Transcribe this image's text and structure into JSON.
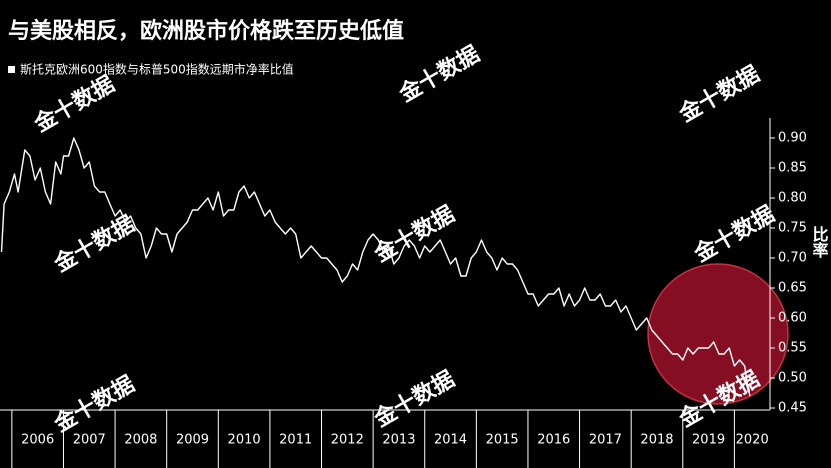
{
  "chart_data": {
    "type": "line",
    "title": "与美股相反，欧洲股市价格跌至历史低值",
    "legend_label": "斯托克欧洲600指数与标普500指数远期市净率比值",
    "ylabel": "比率",
    "watermark": "金十数据",
    "x": [
      2005.8,
      2005.85,
      2005.95,
      2006.05,
      2006.12,
      2006.25,
      2006.35,
      2006.45,
      2006.55,
      2006.65,
      2006.75,
      2006.85,
      2006.95,
      2007.0,
      2007.1,
      2007.2,
      2007.3,
      2007.4,
      2007.5,
      2007.6,
      2007.7,
      2007.8,
      2007.9,
      2008.0,
      2008.1,
      2008.2,
      2008.3,
      2008.4,
      2008.5,
      2008.6,
      2008.7,
      2008.8,
      2008.9,
      2009.0,
      2009.1,
      2009.2,
      2009.3,
      2009.4,
      2009.5,
      2009.6,
      2009.7,
      2009.8,
      2009.9,
      2010.0,
      2010.1,
      2010.2,
      2010.3,
      2010.4,
      2010.5,
      2010.6,
      2010.7,
      2010.8,
      2010.9,
      2011.0,
      2011.1,
      2011.2,
      2011.3,
      2011.4,
      2011.5,
      2011.6,
      2011.7,
      2011.8,
      2011.9,
      2012.0,
      2012.1,
      2012.2,
      2012.3,
      2012.4,
      2012.5,
      2012.6,
      2012.7,
      2012.8,
      2012.9,
      2013.0,
      2013.1,
      2013.2,
      2013.3,
      2013.4,
      2013.5,
      2013.6,
      2013.7,
      2013.8,
      2013.9,
      2014.0,
      2014.1,
      2014.2,
      2014.3,
      2014.4,
      2014.5,
      2014.6,
      2014.7,
      2014.8,
      2014.9,
      2015.0,
      2015.1,
      2015.2,
      2015.3,
      2015.4,
      2015.5,
      2015.6,
      2015.7,
      2015.8,
      2015.9,
      2016.0,
      2016.1,
      2016.2,
      2016.3,
      2016.4,
      2016.5,
      2016.6,
      2016.7,
      2016.8,
      2016.9,
      2017.0,
      2017.1,
      2017.2,
      2017.3,
      2017.4,
      2017.5,
      2017.6,
      2017.7,
      2017.8,
      2017.9,
      2018.0,
      2018.1,
      2018.2,
      2018.3,
      2018.4,
      2018.5,
      2018.6,
      2018.7,
      2018.8,
      2018.9,
      2019.0,
      2019.1,
      2019.2,
      2019.3,
      2019.4,
      2019.5,
      2019.6,
      2019.7,
      2019.8,
      2019.9,
      2020.0,
      2020.1,
      2020.2,
      2020.25,
      2020.3
    ],
    "series": [
      {
        "name": "斯托克欧洲600指数与标普500指数远期市净率比值",
        "color": "#ffffff",
        "values": [
          0.71,
          0.79,
          0.81,
          0.84,
          0.81,
          0.88,
          0.87,
          0.83,
          0.85,
          0.81,
          0.79,
          0.86,
          0.84,
          0.87,
          0.87,
          0.9,
          0.88,
          0.85,
          0.86,
          0.82,
          0.81,
          0.81,
          0.79,
          0.77,
          0.78,
          0.76,
          0.77,
          0.75,
          0.74,
          0.7,
          0.72,
          0.75,
          0.74,
          0.74,
          0.71,
          0.74,
          0.75,
          0.76,
          0.78,
          0.78,
          0.79,
          0.8,
          0.78,
          0.81,
          0.77,
          0.78,
          0.78,
          0.81,
          0.82,
          0.8,
          0.81,
          0.79,
          0.77,
          0.78,
          0.76,
          0.75,
          0.74,
          0.75,
          0.74,
          0.7,
          0.71,
          0.72,
          0.71,
          0.7,
          0.7,
          0.69,
          0.68,
          0.66,
          0.67,
          0.69,
          0.68,
          0.71,
          0.73,
          0.74,
          0.73,
          0.71,
          0.72,
          0.69,
          0.7,
          0.72,
          0.73,
          0.72,
          0.7,
          0.72,
          0.71,
          0.72,
          0.73,
          0.71,
          0.69,
          0.7,
          0.67,
          0.67,
          0.7,
          0.71,
          0.73,
          0.71,
          0.7,
          0.68,
          0.7,
          0.69,
          0.69,
          0.68,
          0.66,
          0.64,
          0.64,
          0.62,
          0.63,
          0.64,
          0.64,
          0.65,
          0.62,
          0.64,
          0.62,
          0.63,
          0.65,
          0.63,
          0.63,
          0.64,
          0.62,
          0.62,
          0.63,
          0.61,
          0.62,
          0.6,
          0.58,
          0.59,
          0.6,
          0.58,
          0.57,
          0.56,
          0.55,
          0.54,
          0.54,
          0.53,
          0.55,
          0.54,
          0.55,
          0.55,
          0.55,
          0.56,
          0.54,
          0.54,
          0.55,
          0.52,
          0.53,
          0.52,
          0.49,
          0.47
        ]
      }
    ],
    "xlim": [
      2005.77,
      2020.69
    ],
    "xticks": [
      2006,
      2007,
      2008,
      2009,
      2010,
      2011,
      2012,
      2013,
      2014,
      2015,
      2016,
      2017,
      2018,
      2019,
      2020
    ],
    "ylim": [
      0.4367,
      0.9333
    ],
    "yticks": [
      {
        "value": 0.45,
        "label": "0.45"
      },
      {
        "value": 0.5,
        "label": "0.50"
      },
      {
        "value": 0.55,
        "label": "0.55"
      },
      {
        "value": 0.6,
        "label": "0.60"
      },
      {
        "value": 0.65,
        "label": "0.65"
      },
      {
        "value": 0.7,
        "label": "0.70"
      },
      {
        "value": 0.75,
        "label": "0.75"
      },
      {
        "value": 0.8,
        "label": "0.80"
      },
      {
        "value": 0.85,
        "label": "0.85"
      },
      {
        "value": 0.9,
        "label": "0.90"
      }
    ]
  }
}
